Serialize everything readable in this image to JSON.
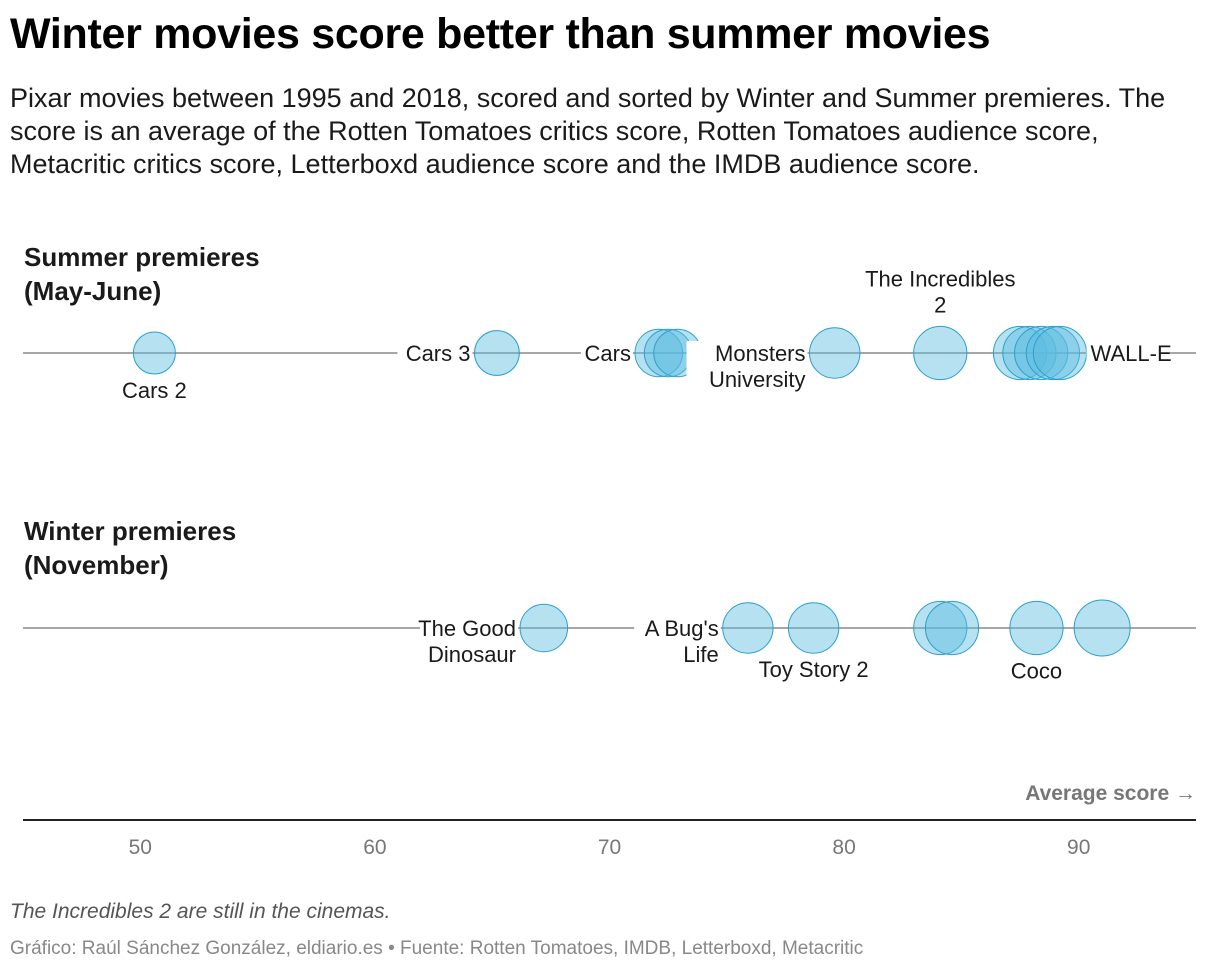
{
  "title": "Winter movies score better than summer movies",
  "subtitle": "Pixar movies between 1995 and 2018, scored and sorted by Winter and Summer premieres. The score is an average of the Rotten Tomatoes critics score, Rotten Tomatoes audience score, Metacritic critics score, Letterboxd audience score and the IMDB audience score.",
  "note": "The Incredibles 2 are still in the cinemas.",
  "source": "Gráfico: Raúl Sánchez González, eldiario.es • Fuente: Rotten Tomatoes, IMDB, Letterboxd, Metacritic",
  "colors": {
    "summer": "#f08c00",
    "winter": "#1f86a3",
    "bubble_fill": "#5bbde0",
    "bubble_stroke": "#2a9fcc",
    "axis": "#222222",
    "rule": "#888888"
  },
  "chart_data": {
    "type": "scatter",
    "xlabel": "Average score →",
    "xlim": [
      45,
      95
    ],
    "xticks": [
      50,
      60,
      70,
      80,
      90
    ],
    "series": [
      {
        "name": "Summer premieres",
        "period": "(May-June)",
        "points": [
          {
            "x": 50.6,
            "size": 0.75
          },
          {
            "x": 65.2,
            "size": 0.8
          },
          {
            "x": 72.1,
            "size": 0.85
          },
          {
            "x": 72.5,
            "size": 0.85
          },
          {
            "x": 72.9,
            "size": 0.85
          },
          {
            "x": 79.6,
            "size": 0.9
          },
          {
            "x": 84.1,
            "size": 0.95
          },
          {
            "x": 87.5,
            "size": 0.95
          },
          {
            "x": 87.9,
            "size": 0.95
          },
          {
            "x": 88.4,
            "size": 0.95
          },
          {
            "x": 88.9,
            "size": 0.95
          },
          {
            "x": 89.2,
            "size": 0.95
          }
        ],
        "labels": [
          {
            "text": [
              "Cars 2"
            ],
            "x": 50.6,
            "pos": "below"
          },
          {
            "text": [
              "Cars 3"
            ],
            "x": 65.2,
            "pos": "left"
          },
          {
            "text": [
              "Cars"
            ],
            "x": 72.1,
            "pos": "left"
          },
          {
            "text": [
              "Monsters",
              "University"
            ],
            "x": 79.6,
            "pos": "left"
          },
          {
            "text": [
              "The Incredibles",
              "2"
            ],
            "x": 84.1,
            "pos": "above"
          },
          {
            "text": [
              "WALL-E"
            ],
            "x": 89.2,
            "pos": "right"
          }
        ]
      },
      {
        "name": "Winter premieres",
        "period": "(November)",
        "points": [
          {
            "x": 67.2,
            "size": 0.85
          },
          {
            "x": 75.9,
            "size": 0.9
          },
          {
            "x": 78.7,
            "size": 0.9
          },
          {
            "x": 84.1,
            "size": 0.95
          },
          {
            "x": 84.6,
            "size": 0.95
          },
          {
            "x": 88.2,
            "size": 0.95
          },
          {
            "x": 91.0,
            "size": 1.0
          }
        ],
        "labels": [
          {
            "text": [
              "The Good",
              "Dinosaur"
            ],
            "x": 67.2,
            "pos": "left"
          },
          {
            "text": [
              "A Bug's",
              "Life"
            ],
            "x": 75.9,
            "pos": "left"
          },
          {
            "text": [
              "Toy Story 2"
            ],
            "x": 78.7,
            "pos": "below"
          },
          {
            "text": [
              "Coco"
            ],
            "x": 88.2,
            "pos": "below"
          }
        ]
      }
    ]
  }
}
